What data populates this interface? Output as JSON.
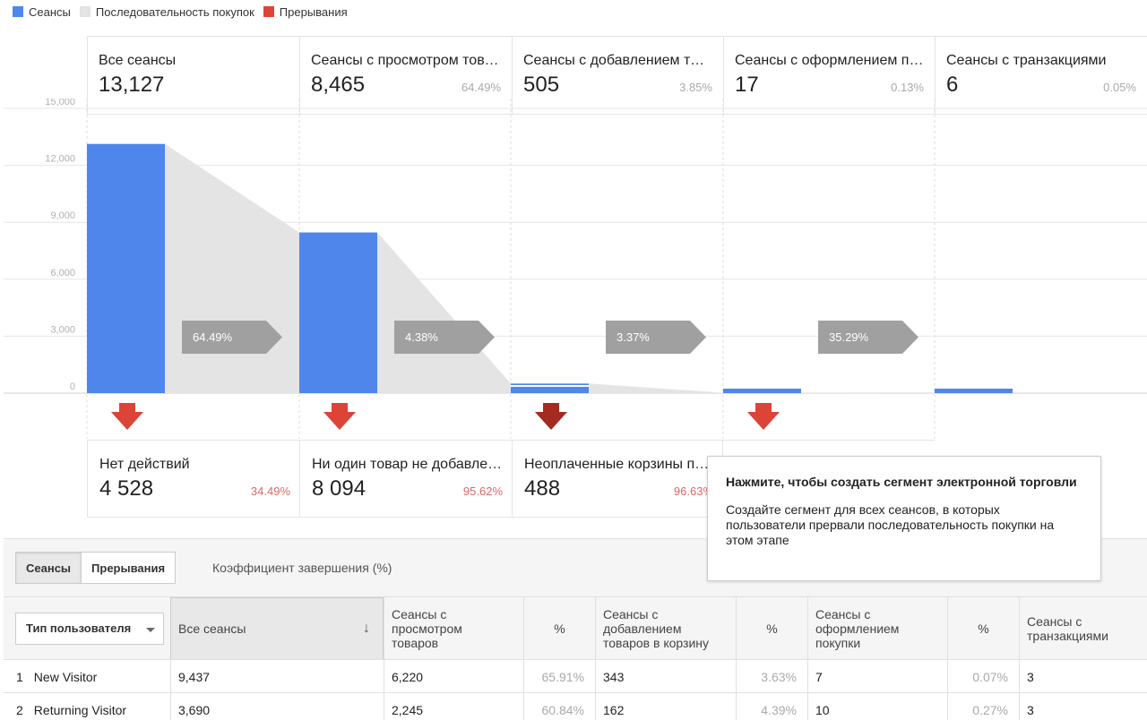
{
  "legend": [
    {
      "label": "Сеансы",
      "color": "#4f86ec"
    },
    {
      "label": "Последовательность покупок",
      "color": "#e4e4e4"
    },
    {
      "label": "Прерывания",
      "color": "#db4437"
    }
  ],
  "funnel_steps": [
    {
      "label": "Все сеансы",
      "value": "13,127",
      "pct": ""
    },
    {
      "label": "Сеансы с просмотром товаров",
      "value": "8,465",
      "pct": "64.49%"
    },
    {
      "label": "Сеансы с добавлением товаров в корзину",
      "value": "505",
      "pct": "3.85%"
    },
    {
      "label": "Сеансы с оформлением покупки",
      "value": "17",
      "pct": "0.13%"
    },
    {
      "label": "Сеансы с транзакциями",
      "value": "6",
      "pct": "0.05%"
    }
  ],
  "conversion_rates": [
    "64.49%",
    "4.38%",
    "3.37%",
    "35.29%"
  ],
  "abandonments": [
    {
      "label": "Нет действий",
      "value": "4 528",
      "pct": "34.49%"
    },
    {
      "label": "Ни один товар не добавлен в корзину",
      "value": "8 094",
      "pct": "95.62%"
    },
    {
      "label": "Неоплаченные корзины покупок",
      "value": "488",
      "pct": "96.63%"
    }
  ],
  "chart_data": {
    "type": "bar",
    "categories": [
      "Все сеансы",
      "Сеансы с просмотром товаров",
      "Сеансы с добавлением товаров в корзину",
      "Сеансы с оформлением покупки",
      "Сеансы с транзакциями"
    ],
    "values": [
      13127,
      8465,
      505,
      17,
      6
    ],
    "y_ticks": [
      "15,000",
      "12,000",
      "9,000",
      "6,000",
      "3,000",
      "0"
    ],
    "ylim": [
      0,
      15000
    ],
    "colors": {
      "bar": "#4f86ec",
      "flow": "#e4e4e4",
      "arrow": "#a0a0a0",
      "abandon": "#db4437",
      "abandon_active": "#a52b20"
    }
  },
  "tooltip": {
    "title": "Нажмите, чтобы создать сегмент электронной торговли",
    "body": "Создайте сегмент для всех сеансов, в которых пользователи прервали последовательность покупки на этом этапе"
  },
  "table": {
    "tabs": [
      "Сеансы",
      "Прерывания"
    ],
    "completion_label": "Коэффициент завершения (%)",
    "dimension": "Тип пользователя",
    "columns": {
      "all": "Все сеансы",
      "view": "Сеансы с просмотром товаров",
      "pct": "%",
      "add": "Сеансы с добавлением товаров в корзину",
      "checkout": "Сеансы с оформлением покупки",
      "transactions": "Сеансы с транзакциями"
    },
    "rows": [
      {
        "num": "1",
        "type": "New Visitor",
        "all": "9,437",
        "view": "6,220",
        "view_pct": "65.91%",
        "add": "343",
        "add_pct": "3.63%",
        "checkout": "7",
        "checkout_pct": "0.07%",
        "transactions": "3"
      },
      {
        "num": "2",
        "type": "Returning Visitor",
        "all": "3,690",
        "view": "2,245",
        "view_pct": "60.84%",
        "add": "162",
        "add_pct": "4.39%",
        "checkout": "10",
        "checkout_pct": "0.27%",
        "transactions": "3"
      }
    ]
  }
}
